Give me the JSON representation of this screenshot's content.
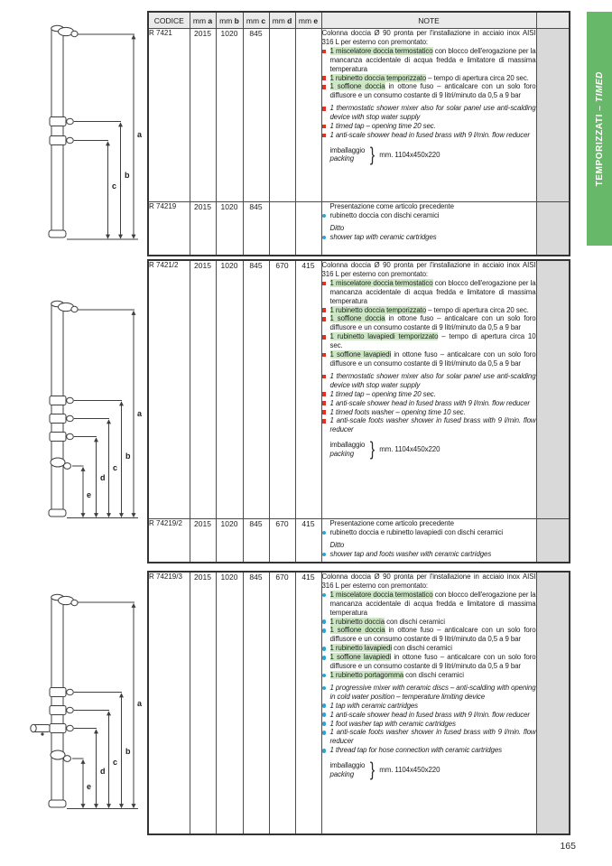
{
  "page": {
    "number": "165"
  },
  "banner": {
    "label_it": "TEMPORIZZATI – ",
    "label_en": "TIMED",
    "color": "#68b869"
  },
  "colors": {
    "highlight": "#cee8c6",
    "red_bullet": "#dd3327",
    "blue_bullet": "#2ba3d4",
    "banner_green": "#68b869"
  },
  "header": {
    "codice": "CODICE",
    "mm": "mm",
    "letters": [
      "a",
      "b",
      "c",
      "d",
      "e"
    ],
    "note": "NOTE"
  },
  "diagrams": [
    {
      "labels": [
        "a",
        "b",
        "c"
      ]
    },
    {
      "labels": [
        "a",
        "b",
        "c",
        "d",
        "e"
      ]
    },
    {
      "labels": [
        "a",
        "b",
        "c",
        "d",
        "e"
      ]
    }
  ],
  "sections": [
    {
      "has_header": true,
      "rows": [
        {
          "codice": "R 7421",
          "mm": [
            "2015",
            "1020",
            "845",
            "",
            ""
          ],
          "note_blocks": [
            {
              "type": "text",
              "text": "Colonna doccia Ø 90 pronta per l'installazione in acciaio inox  AISI 316 L per esterno con premontato:"
            },
            {
              "type": "item",
              "bullet": "red",
              "hl": "1 miscelatore doccia termostatico",
              "text": " con blocco dell'erogazione per la mancanza accidentale di acqua fredda e limitatore di massima temperatura"
            },
            {
              "type": "item",
              "bullet": "red",
              "hl": "1 rubinetto doccia temporizzato",
              "text": " – tempo di apertura circa 20 sec."
            },
            {
              "type": "item",
              "bullet": "red",
              "hl": "1 soffione doccia",
              "text": " in ottone fuso – anticalcare con un solo foro diffusore e un consumo costante di 9 litri/minuto da 0,5 a 9 bar"
            },
            {
              "type": "item",
              "bullet": "red",
              "italic": true,
              "gap": true,
              "text": "1 thermostatic shower mixer also for solar panel use anti-scalding device with stop water supply"
            },
            {
              "type": "item",
              "bullet": "red",
              "italic": true,
              "text": "1 timed tap – opening time 20 sec."
            },
            {
              "type": "item",
              "bullet": "red",
              "italic": true,
              "text": "1 anti-scale shower head in fused brass with 9 l/min. flow reducer"
            },
            {
              "type": "packing",
              "it": "imballaggio",
              "en": "packing",
              "brace": "}",
              "size": "mm. 1104x450x220"
            }
          ]
        },
        {
          "codice": "R 74219",
          "mm": [
            "2015",
            "1020",
            "845",
            "",
            ""
          ],
          "note_blocks": [
            {
              "type": "text",
              "indent": true,
              "text": "Presentazione come articolo precedente"
            },
            {
              "type": "item",
              "bullet": "blue",
              "text": "rubinetto doccia con dischi ceramici"
            },
            {
              "type": "text",
              "indent": true,
              "italic": true,
              "gap": true,
              "text": "Ditto"
            },
            {
              "type": "item",
              "bullet": "blue",
              "italic": true,
              "text": "shower tap with ceramic cartridges"
            }
          ]
        }
      ]
    },
    {
      "has_header": false,
      "rows": [
        {
          "codice": "R 7421/2",
          "mm": [
            "2015",
            "1020",
            "845",
            "670",
            "415"
          ],
          "note_blocks": [
            {
              "type": "text",
              "text": "Colonna doccia Ø 90 pronta per l'installazione in acciaio inox  AISI 316 L per esterno con premontato:"
            },
            {
              "type": "item",
              "bullet": "red",
              "hl": "1 miscelatore doccia termostatico",
              "text": " con blocco dell'erogazione per la mancanza accidentale di acqua fredda e limitatore di massima temperatura"
            },
            {
              "type": "item",
              "bullet": "red",
              "hl": "1 rubinetto doccia temporizzato",
              "text": " – tempo di apertura circa 20 sec."
            },
            {
              "type": "item",
              "bullet": "red",
              "hl": "1 soffione doccia",
              "text": " in ottone fuso – anticalcare con un solo foro diffusore e un consumo costante di 9 litri/minuto da 0,5 a 9 bar"
            },
            {
              "type": "item",
              "bullet": "red",
              "hl": "1 rubinetto lavapiedi temporizzato",
              "text": " – tempo di apertura circa 10 sec."
            },
            {
              "type": "item",
              "bullet": "red",
              "hl": "1 soffione lavapiedi",
              "text": " in ottone fuso – anticalcare con un solo foro diffusore e un consumo costante di 9 litri/minuto da 0,5 a 9 bar"
            },
            {
              "type": "item",
              "bullet": "red",
              "italic": true,
              "gap": true,
              "text": "1 thermostatic shower mixer also for solar panel use anti-scalding device with stop water supply"
            },
            {
              "type": "item",
              "bullet": "red",
              "italic": true,
              "text": "1 timed tap – opening time 20 sec."
            },
            {
              "type": "item",
              "bullet": "red",
              "italic": true,
              "text": "1 anti-scale shower head in fused brass with 9 l/min. flow reducer"
            },
            {
              "type": "item",
              "bullet": "red",
              "italic": true,
              "text": "1 timed foots washer – opening time 10 sec."
            },
            {
              "type": "item",
              "bullet": "red",
              "italic": true,
              "text": "1 anti-scale foots washer shower in fused brass with 9 l/min. flow reducer"
            },
            {
              "type": "packing",
              "it": "imballaggio",
              "en": "packing",
              "brace": "}",
              "size": "mm. 1104x450x220"
            }
          ]
        },
        {
          "codice": "R 74219/2",
          "mm": [
            "2015",
            "1020",
            "845",
            "670",
            "415"
          ],
          "note_blocks": [
            {
              "type": "text",
              "indent": true,
              "text": "Presentazione come articolo precedente"
            },
            {
              "type": "item",
              "bullet": "blue",
              "text": "rubinetto doccia e rubinetto lavapiedi con dischi ceramici"
            },
            {
              "type": "text",
              "indent": true,
              "italic": true,
              "gap": true,
              "text": "Ditto"
            },
            {
              "type": "item",
              "bullet": "blue",
              "italic": true,
              "text": "shower tap and foots washer with ceramic cartridges"
            }
          ]
        }
      ]
    },
    {
      "has_header": false,
      "rows": [
        {
          "codice": "R 74219/3",
          "mm": [
            "2015",
            "1020",
            "845",
            "670",
            "415"
          ],
          "note_blocks": [
            {
              "type": "text",
              "text": "Colonna doccia Ø 90 pronta per l'installazione in acciaio inox  AISI 316 L per esterno con premontato:"
            },
            {
              "type": "item",
              "bullet": "blue",
              "hl": "1 miscelatore doccia termostatico",
              "text": " con blocco dell'erogazione per la mancanza accidentale di acqua fredda e limitatore di massima temperatura"
            },
            {
              "type": "item",
              "bullet": "blue",
              "hl": "1 rubinetto doccia",
              "text": " con dischi ceramici"
            },
            {
              "type": "item",
              "bullet": "blue",
              "hl": "1 soffione doccia",
              "text": " in ottone fuso – anticalcare con un solo foro diffusore e un consumo costante di 9 litri/minuto da 0,5 a 9 bar"
            },
            {
              "type": "item",
              "bullet": "blue",
              "hl": "1 rubinetto lavapiedi",
              "text": " con dischi ceramici"
            },
            {
              "type": "item",
              "bullet": "blue",
              "hl": "1 soffione lavapiedi",
              "text": " in ottone fuso – anticalcare con un solo foro diffusore e un consumo costante di 9 litri/minuto da 0,5 a 9 bar"
            },
            {
              "type": "item",
              "bullet": "blue",
              "hl": "1 rubinetto portagomma",
              "text": " con dischi ceramici"
            },
            {
              "type": "item",
              "bullet": "blue",
              "italic": true,
              "gap": true,
              "text": "1 progressive mixer with ceramic discs – anti-scalding with opening in cold water position – temperature limiting device"
            },
            {
              "type": "item",
              "bullet": "blue",
              "italic": true,
              "text": "1 tap with ceramic cartridges"
            },
            {
              "type": "item",
              "bullet": "blue",
              "italic": true,
              "text": "1 anti-scale shower head in fused brass with 9 l/min. flow reducer"
            },
            {
              "type": "item",
              "bullet": "blue",
              "italic": true,
              "text": "1 foot washer tap with ceramic cartridges"
            },
            {
              "type": "item",
              "bullet": "blue",
              "italic": true,
              "text": "1 anti-scale foots washer shower in fused brass with 9 l/min. flow reducer"
            },
            {
              "type": "item",
              "bullet": "blue",
              "italic": true,
              "text": "1 thread tap for hose connection with ceramic cartridges"
            },
            {
              "type": "packing",
              "it": "imballaggio",
              "en": "packing",
              "brace": "}",
              "size": "mm. 1104x450x220"
            }
          ]
        }
      ]
    }
  ]
}
